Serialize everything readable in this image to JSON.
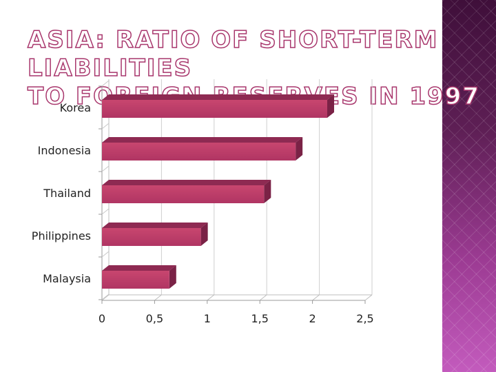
{
  "slide": {
    "title_line1": "Asia: Ratio of short-term liabilities",
    "title_line2": "to foreign reserves in 1997",
    "accent_color": "#a8366c",
    "panel_color": "#7a2a6e"
  },
  "chart_data": {
    "type": "bar",
    "orientation": "horizontal",
    "title": "Asia: Ratio of short-term liabilities to foreign reserves in 1997",
    "categories": [
      "Korea",
      "Indonesia",
      "Thailand",
      "Philippines",
      "Malaysia"
    ],
    "values": [
      2.14,
      1.84,
      1.54,
      0.94,
      0.64
    ],
    "xlim": [
      0,
      2.5
    ],
    "ticks": [
      "0",
      "0,5",
      "1",
      "1,5",
      "2",
      "2,5"
    ],
    "tick_values": [
      0,
      0.5,
      1,
      1.5,
      2,
      2.5
    ],
    "grid": true,
    "bar_color": "#b83d68",
    "legend": "none"
  }
}
